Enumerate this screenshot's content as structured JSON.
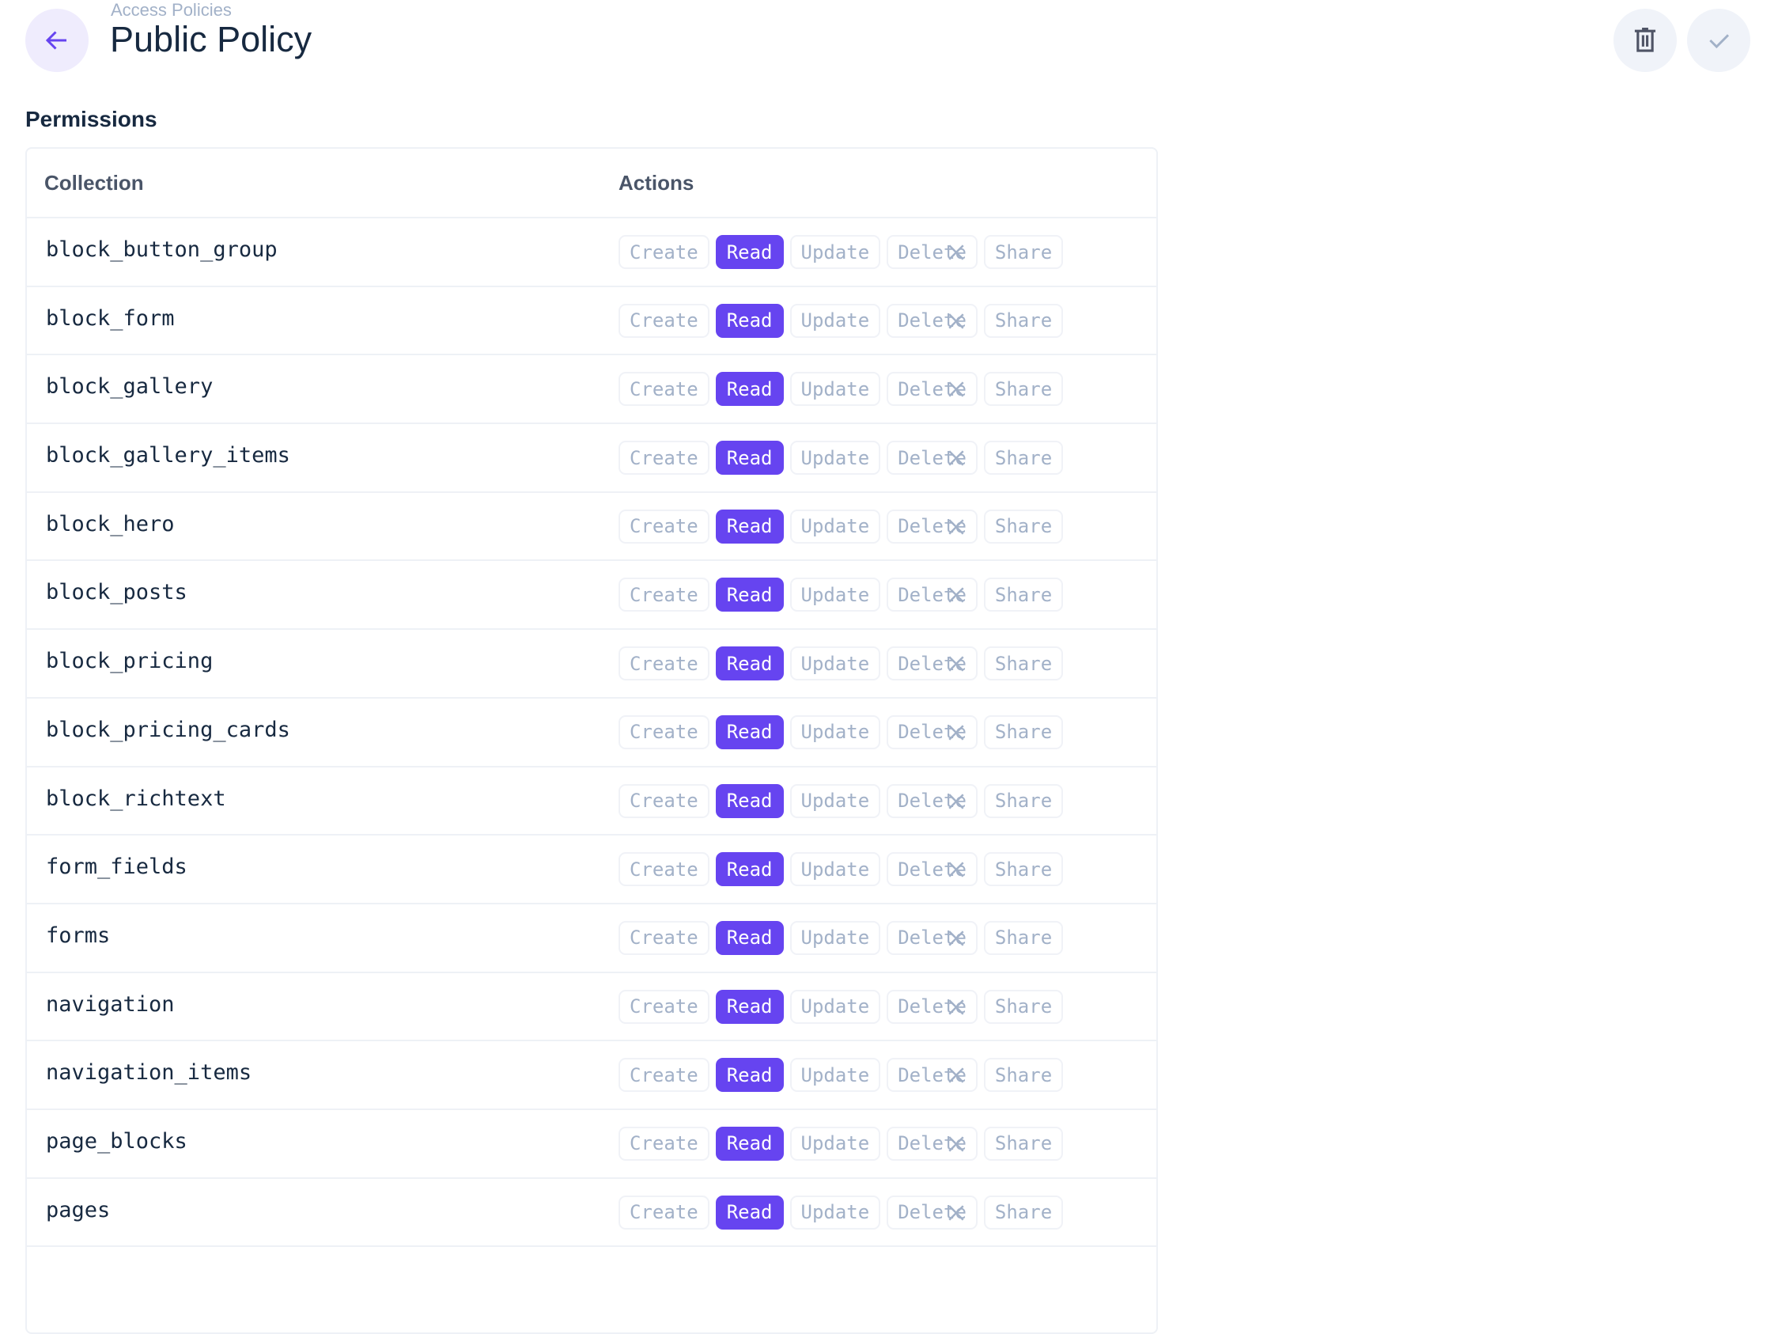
{
  "header": {
    "breadcrumb": "Access Policies",
    "title": "Public Policy"
  },
  "section_title": "Permissions",
  "table": {
    "columns": [
      "Collection",
      "Actions"
    ],
    "action_labels": [
      "Create",
      "Read",
      "Update",
      "Delete",
      "Share"
    ],
    "rows": [
      {
        "collection": "block_button_group",
        "enabled": [
          "Read"
        ]
      },
      {
        "collection": "block_form",
        "enabled": [
          "Read"
        ]
      },
      {
        "collection": "block_gallery",
        "enabled": [
          "Read"
        ]
      },
      {
        "collection": "block_gallery_items",
        "enabled": [
          "Read"
        ]
      },
      {
        "collection": "block_hero",
        "enabled": [
          "Read"
        ]
      },
      {
        "collection": "block_posts",
        "enabled": [
          "Read"
        ]
      },
      {
        "collection": "block_pricing",
        "enabled": [
          "Read"
        ]
      },
      {
        "collection": "block_pricing_cards",
        "enabled": [
          "Read"
        ]
      },
      {
        "collection": "block_richtext",
        "enabled": [
          "Read"
        ]
      },
      {
        "collection": "form_fields",
        "enabled": [
          "Read"
        ]
      },
      {
        "collection": "forms",
        "enabled": [
          "Read"
        ]
      },
      {
        "collection": "navigation",
        "enabled": [
          "Read"
        ]
      },
      {
        "collection": "navigation_items",
        "enabled": [
          "Read"
        ]
      },
      {
        "collection": "page_blocks",
        "enabled": [
          "Read"
        ]
      },
      {
        "collection": "pages",
        "enabled": [
          "Read"
        ]
      }
    ]
  },
  "colors": {
    "accent": "#6644f0",
    "muted": "#a2b1c8",
    "text": "#172940"
  }
}
